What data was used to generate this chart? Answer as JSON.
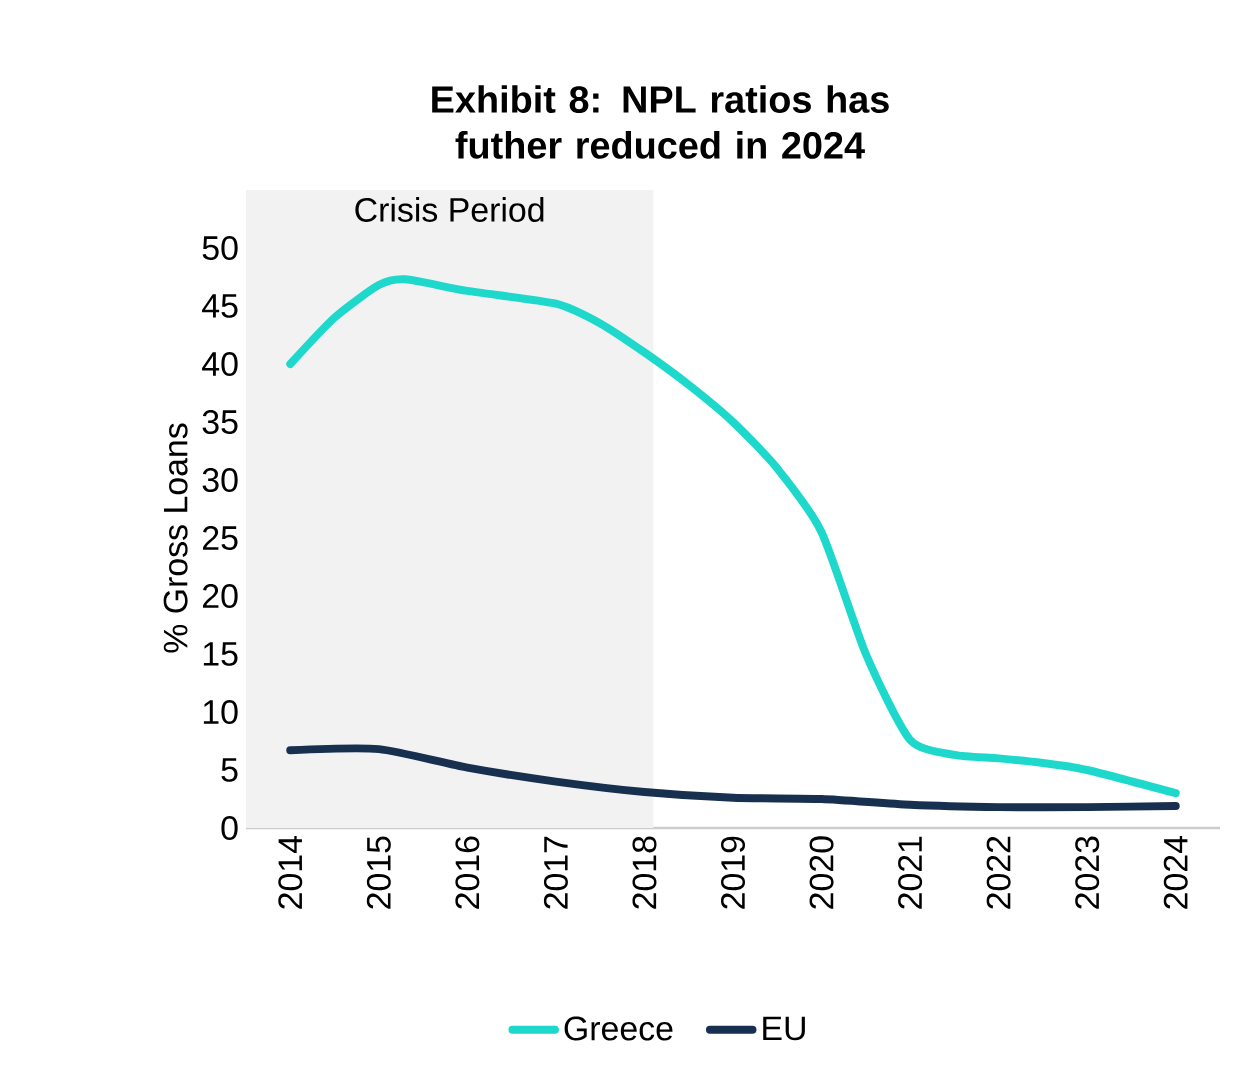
{
  "chart_data": {
    "type": "line",
    "title": "Exhibit 8: NPL ratios has futher reduced in 2024",
    "ylabel": "% Gross Loans",
    "xlim": [
      2013.5,
      2024.5
    ],
    "xticks": [
      2014,
      2015,
      2016,
      2017,
      2018,
      2019,
      2020,
      2021,
      2022,
      2023,
      2024
    ],
    "ylim": [
      0,
      50
    ],
    "yticks": [
      0,
      5,
      10,
      15,
      20,
      25,
      30,
      35,
      40,
      45,
      50
    ],
    "series": [
      {
        "name": "Greece",
        "color": "#1fd8cc",
        "x": [
          2014,
          2014.5,
          2015,
          2015.3,
          2016,
          2017,
          2017.5,
          2018,
          2018.5,
          2019,
          2019.5,
          2020,
          2020.5,
          2021,
          2021.5,
          2022,
          2022.5,
          2023,
          2024
        ],
        "values": [
          40,
          44,
          46.8,
          47.3,
          46.3,
          45.2,
          43.5,
          41,
          38.2,
          35,
          31,
          25.5,
          15,
          7.6,
          6.3,
          6,
          5.6,
          5,
          3
        ]
      },
      {
        "name": "EU",
        "color": "#17304f",
        "x": [
          2014,
          2015,
          2016,
          2017,
          2018,
          2019,
          2020,
          2021,
          2022,
          2023,
          2024
        ],
        "values": [
          6.7,
          6.8,
          5.2,
          4,
          3.1,
          2.6,
          2.5,
          2,
          1.8,
          1.8,
          1.9
        ]
      }
    ],
    "bands": [
      {
        "axis": "x",
        "from": 2013.5,
        "to": 2018.1,
        "label": "Crisis Period",
        "color": "#f2f2f2"
      }
    ],
    "legend": "bottom",
    "marker": "none",
    "line_style": "solid"
  }
}
